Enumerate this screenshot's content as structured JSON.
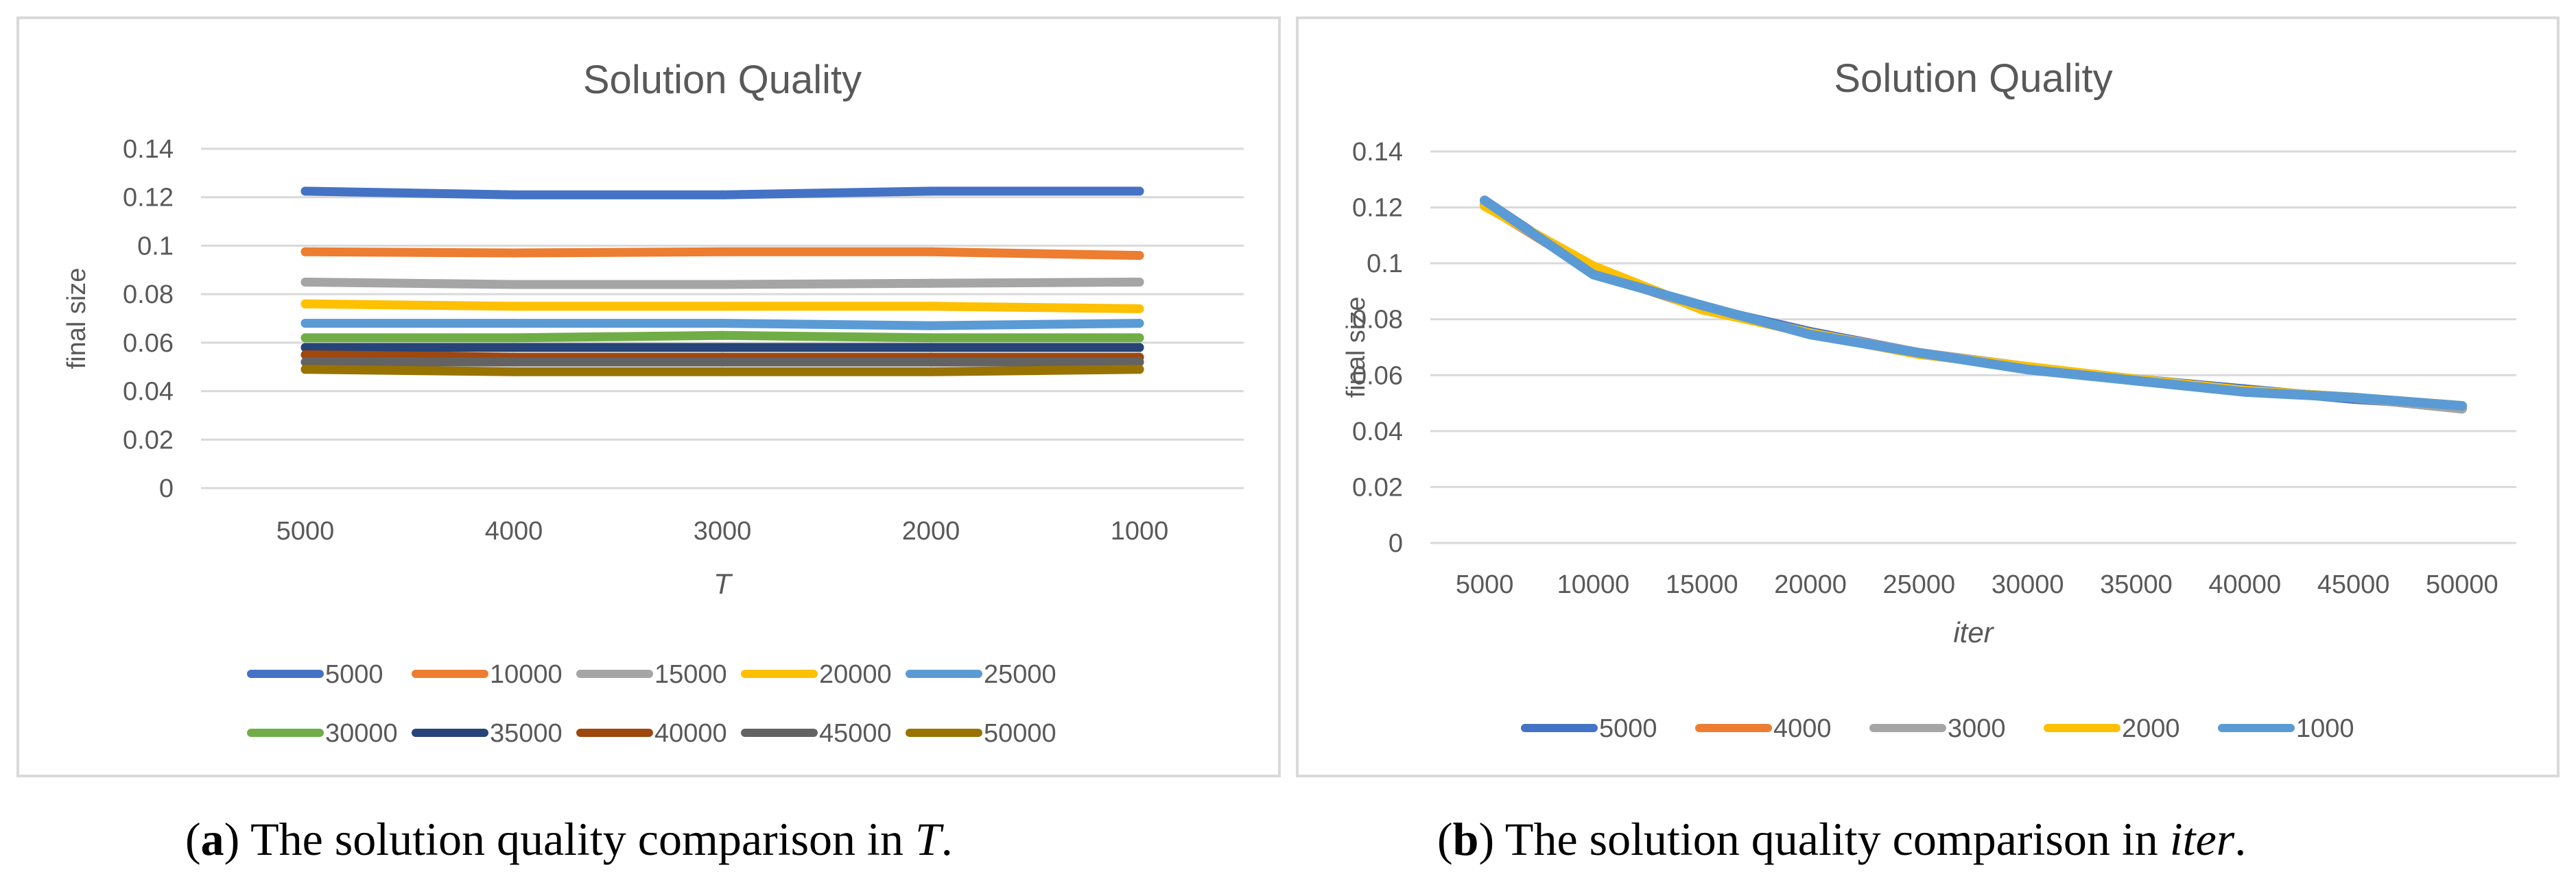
{
  "chart_data": [
    {
      "type": "line",
      "title": "Solution Quality",
      "xlabel": "T",
      "ylabel": "final size",
      "ylim": [
        0,
        0.14
      ],
      "yticks": [
        "0",
        "0.02",
        "0.04",
        "0.06",
        "0.08",
        "0.1",
        "0.12",
        "0.14"
      ],
      "categories": [
        "5000",
        "4000",
        "3000",
        "2000",
        "1000"
      ],
      "legend_position": "bottom",
      "series": [
        {
          "name": "5000",
          "color": "#4472c4",
          "values": [
            0.1225,
            0.121,
            0.121,
            0.1225,
            0.1225
          ]
        },
        {
          "name": "10000",
          "color": "#ed7d31",
          "values": [
            0.0975,
            0.097,
            0.0975,
            0.0975,
            0.096
          ]
        },
        {
          "name": "15000",
          "color": "#a5a5a5",
          "values": [
            0.085,
            0.084,
            0.084,
            0.0845,
            0.085
          ]
        },
        {
          "name": "20000",
          "color": "#ffc000",
          "values": [
            0.076,
            0.075,
            0.075,
            0.075,
            0.074
          ]
        },
        {
          "name": "25000",
          "color": "#5b9bd5",
          "values": [
            0.068,
            0.068,
            0.068,
            0.067,
            0.068
          ]
        },
        {
          "name": "30000",
          "color": "#70ad47",
          "values": [
            0.062,
            0.062,
            0.063,
            0.062,
            0.062
          ]
        },
        {
          "name": "35000",
          "color": "#264478",
          "values": [
            0.058,
            0.058,
            0.058,
            0.058,
            0.058
          ]
        },
        {
          "name": "40000",
          "color": "#9e480e",
          "values": [
            0.055,
            0.054,
            0.054,
            0.054,
            0.054
          ]
        },
        {
          "name": "45000",
          "color": "#636363",
          "values": [
            0.052,
            0.052,
            0.052,
            0.052,
            0.052
          ]
        },
        {
          "name": "50000",
          "color": "#997300",
          "values": [
            0.049,
            0.048,
            0.048,
            0.048,
            0.049
          ]
        }
      ]
    },
    {
      "type": "line",
      "title": "Solution Quality",
      "xlabel": "iter",
      "ylabel": "final size",
      "ylim": [
        0,
        0.14
      ],
      "yticks": [
        "0",
        "0.02",
        "0.04",
        "0.06",
        "0.08",
        "0.1",
        "0.12",
        "0.14"
      ],
      "categories": [
        "5000",
        "10000",
        "15000",
        "20000",
        "25000",
        "30000",
        "35000",
        "40000",
        "45000",
        "50000"
      ],
      "legend_position": "bottom",
      "series": [
        {
          "name": "5000",
          "color": "#4472c4",
          "values": [
            0.1225,
            0.0965,
            0.0845,
            0.0755,
            0.068,
            0.0625,
            0.0585,
            0.055,
            0.0515,
            0.049
          ]
        },
        {
          "name": "4000",
          "color": "#ed7d31",
          "values": [
            0.121,
            0.097,
            0.084,
            0.075,
            0.068,
            0.0625,
            0.058,
            0.0545,
            0.052,
            0.048
          ]
        },
        {
          "name": "3000",
          "color": "#a5a5a5",
          "values": [
            0.121,
            0.0975,
            0.084,
            0.075,
            0.068,
            0.063,
            0.058,
            0.0545,
            0.052,
            0.048
          ]
        },
        {
          "name": "2000",
          "color": "#ffc000",
          "values": [
            0.1205,
            0.099,
            0.0835,
            0.075,
            0.0675,
            0.063,
            0.0585,
            0.0545,
            0.052,
            0.049
          ]
        },
        {
          "name": "1000",
          "color": "#5b9bd5",
          "values": [
            0.1225,
            0.096,
            0.085,
            0.0745,
            0.068,
            0.062,
            0.058,
            0.054,
            0.052,
            0.049
          ]
        }
      ]
    }
  ],
  "captions": {
    "a": {
      "label": "a",
      "text": " The solution quality comparison in ",
      "var": "T",
      "end": "."
    },
    "b": {
      "label": "b",
      "text": " The solution quality comparison in ",
      "var": "iter",
      "end": "."
    }
  }
}
